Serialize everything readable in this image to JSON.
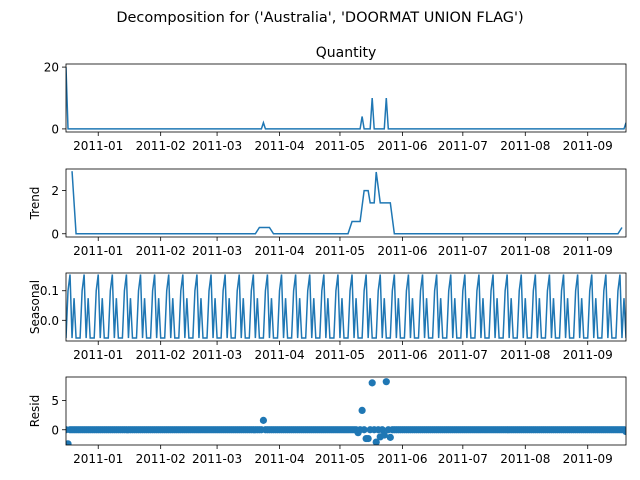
{
  "suptitle": "Decomposition for ('Australia', 'DOORMAT UNION FLAG')",
  "x_tick_labels": [
    "2011-01",
    "2011-02",
    "2011-03",
    "2011-04",
    "2011-05",
    "2011-06",
    "2011-07",
    "2011-08",
    "2011-09"
  ],
  "line_color": "#1f77b4",
  "chart_data": [
    {
      "type": "line",
      "title": "Quantity",
      "ylabel": "",
      "x_range": [
        "2010-12-16",
        "2011-09-20"
      ],
      "ylim": [
        -1,
        21
      ],
      "yticks": [
        0,
        20
      ],
      "baseline": 0,
      "peaks": [
        {
          "x": "2010-12-16",
          "y": 20
        },
        {
          "x": "2011-03-24",
          "y": 2
        },
        {
          "x": "2011-05-12",
          "y": 4
        },
        {
          "x": "2011-05-17",
          "y": 10
        },
        {
          "x": "2011-05-24",
          "y": 10
        },
        {
          "x": "2011-09-20",
          "y": 2
        }
      ]
    },
    {
      "type": "line",
      "title": "",
      "ylabel": "Trend",
      "x_range": [
        "2010-12-16",
        "2011-09-20"
      ],
      "ylim": [
        -0.15,
        3.0
      ],
      "yticks": [
        0,
        2
      ],
      "points": [
        {
          "x": "2010-12-19",
          "y": 2.9
        },
        {
          "x": "2010-12-21",
          "y": 0
        },
        {
          "x": "2011-03-20",
          "y": 0
        },
        {
          "x": "2011-03-22",
          "y": 0.29
        },
        {
          "x": "2011-03-27",
          "y": 0.29
        },
        {
          "x": "2011-03-29",
          "y": 0
        },
        {
          "x": "2011-05-05",
          "y": 0
        },
        {
          "x": "2011-05-07",
          "y": 0.57
        },
        {
          "x": "2011-05-11",
          "y": 0.57
        },
        {
          "x": "2011-05-13",
          "y": 2.0
        },
        {
          "x": "2011-05-15",
          "y": 2.0
        },
        {
          "x": "2011-05-16",
          "y": 1.43
        },
        {
          "x": "2011-05-18",
          "y": 1.43
        },
        {
          "x": "2011-05-19",
          "y": 2.86
        },
        {
          "x": "2011-05-21",
          "y": 1.43
        },
        {
          "x": "2011-05-26",
          "y": 1.43
        },
        {
          "x": "2011-05-28",
          "y": 0
        },
        {
          "x": "2011-09-16",
          "y": 0
        },
        {
          "x": "2011-09-18",
          "y": 0.29
        }
      ]
    },
    {
      "type": "line",
      "title": "",
      "ylabel": "Seasonal",
      "x_range": [
        "2010-12-16",
        "2011-09-20"
      ],
      "ylim": [
        -0.07,
        0.16
      ],
      "yticks": [
        0.0,
        0.1
      ],
      "ytick_labels": [
        "0.0",
        "0.1"
      ],
      "period_days": 7,
      "cycle": [
        -0.06,
        0.1,
        0.155,
        -0.06,
        0.075,
        -0.06,
        -0.06
      ]
    },
    {
      "type": "scatter",
      "title": "",
      "ylabel": "Resid",
      "x_range": [
        "2010-12-16",
        "2011-09-20"
      ],
      "ylim": [
        -2.6,
        9.0
      ],
      "yticks": [
        0,
        5
      ],
      "baseline": 0,
      "default_y": 0,
      "outliers": [
        {
          "x": "2010-12-17",
          "y": -2.4
        },
        {
          "x": "2011-03-24",
          "y": 1.6
        },
        {
          "x": "2011-05-10",
          "y": -0.5
        },
        {
          "x": "2011-05-12",
          "y": 3.3
        },
        {
          "x": "2011-05-14",
          "y": -1.5
        },
        {
          "x": "2011-05-15",
          "y": -1.5
        },
        {
          "x": "2011-05-17",
          "y": 8.0
        },
        {
          "x": "2011-05-19",
          "y": -2.1
        },
        {
          "x": "2011-05-21",
          "y": -1.2
        },
        {
          "x": "2011-05-23",
          "y": -0.9
        },
        {
          "x": "2011-05-24",
          "y": 8.2
        },
        {
          "x": "2011-05-26",
          "y": -1.3
        },
        {
          "x": "2011-09-20",
          "y": -0.3
        }
      ]
    }
  ]
}
